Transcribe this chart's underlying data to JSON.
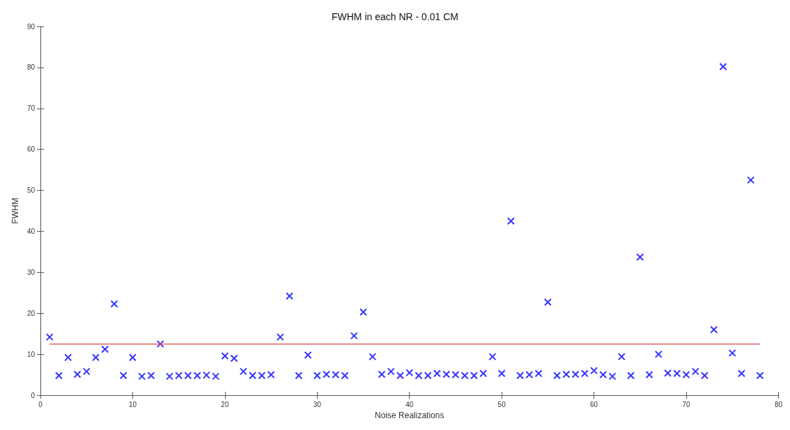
{
  "chart_data": {
    "type": "scatter",
    "title": "FWHM in each NR - 0.01 CM",
    "xlabel": "Noise Realizations",
    "ylabel": "FWHM",
    "xlim": [
      0,
      80
    ],
    "xticks": [
      0,
      10,
      20,
      30,
      40,
      50,
      60,
      70,
      80
    ],
    "ylim": [
      0,
      90
    ],
    "yticks": [
      0,
      10,
      20,
      30,
      40,
      50,
      60,
      70,
      80,
      90
    ],
    "grid": false,
    "marker": "cross",
    "series": [
      {
        "color": "#0000ff",
        "x": [
          1,
          2,
          3,
          4,
          5,
          6,
          7,
          8,
          9,
          10,
          11,
          12,
          13,
          14,
          15,
          16,
          17,
          18,
          19,
          20,
          21,
          22,
          23,
          24,
          25,
          26,
          27,
          28,
          29,
          30,
          31,
          32,
          33,
          34,
          35,
          36,
          37,
          38,
          39,
          40,
          41,
          42,
          43,
          44,
          45,
          46,
          47,
          48,
          49,
          50,
          51,
          52,
          53,
          54,
          55,
          56,
          57,
          58,
          59,
          60,
          61,
          62,
          63,
          64,
          65,
          66,
          67,
          68,
          69,
          70,
          71,
          72,
          73,
          74,
          75,
          76,
          77,
          78
        ],
        "values": [
          14.2,
          4.8,
          9.2,
          5.1,
          5.8,
          9.2,
          11.2,
          22.3,
          4.8,
          9.2,
          4.6,
          4.8,
          12.5,
          4.6,
          4.8,
          4.8,
          4.8,
          4.9,
          4.6,
          9.6,
          9.0,
          5.8,
          4.8,
          4.8,
          5.0,
          14.2,
          24.2,
          4.8,
          9.8,
          4.8,
          5.1,
          5.0,
          4.8,
          14.5,
          20.3,
          9.4,
          5.1,
          5.8,
          4.8,
          5.5,
          4.8,
          4.8,
          5.3,
          5.1,
          5.0,
          4.8,
          4.8,
          5.3,
          9.4,
          5.3,
          42.5,
          4.8,
          5.0,
          5.3,
          22.7,
          4.8,
          5.1,
          5.1,
          5.3,
          6.0,
          5.0,
          4.6,
          9.4,
          4.8,
          33.7,
          5.0,
          10.0,
          5.4,
          5.3,
          5.0,
          5.8,
          4.8,
          16.0,
          80.2,
          10.3,
          5.3,
          52.5,
          4.8
        ]
      },
      {
        "type": "line",
        "marker": "none",
        "color": "#e06060",
        "x": [
          1,
          78
        ],
        "values": [
          12.5,
          12.5
        ]
      }
    ]
  }
}
